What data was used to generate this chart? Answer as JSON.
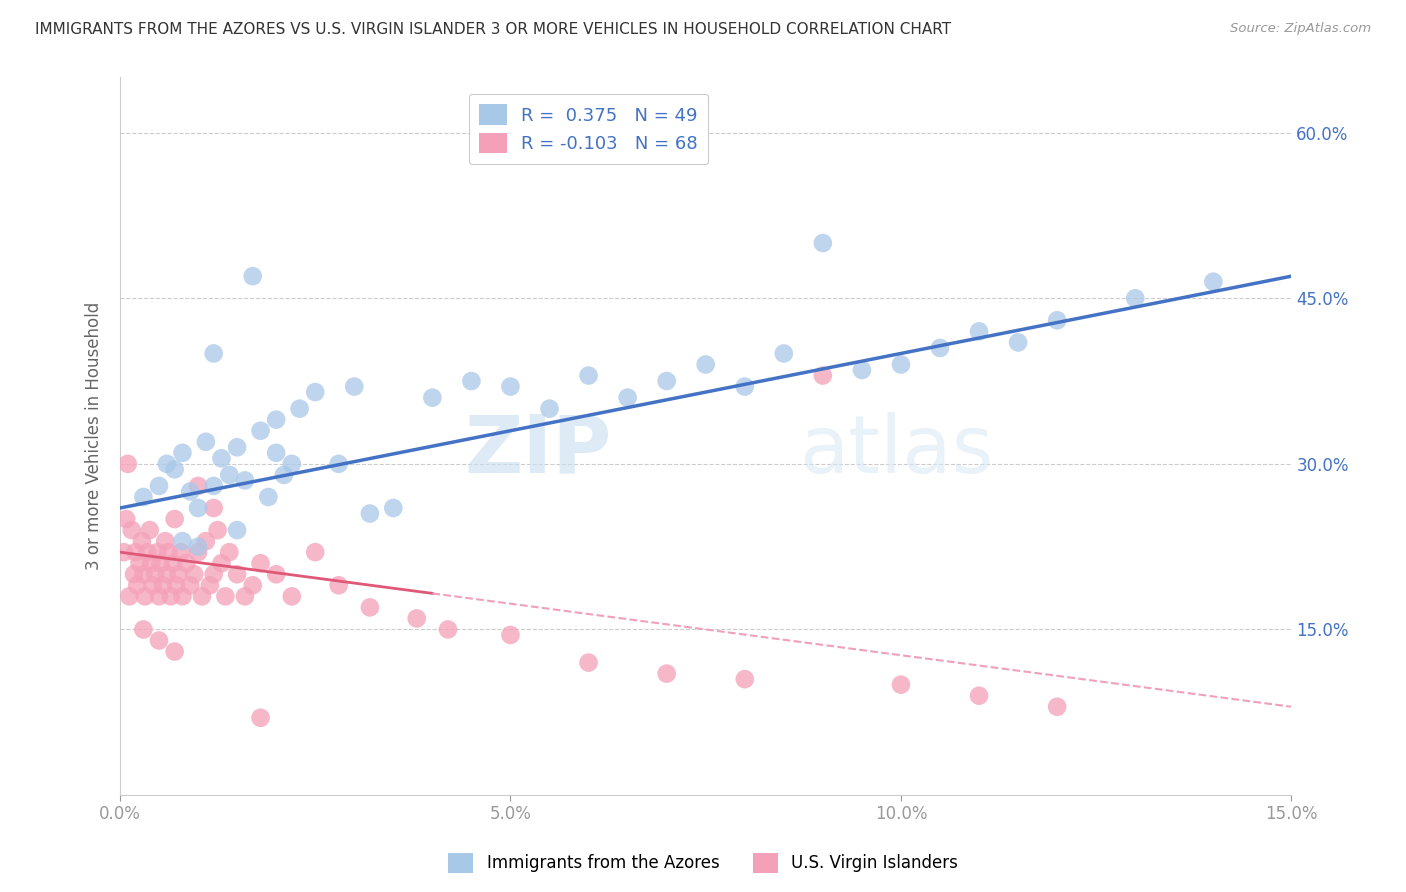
{
  "title": "IMMIGRANTS FROM THE AZORES VS U.S. VIRGIN ISLANDER 3 OR MORE VEHICLES IN HOUSEHOLD CORRELATION CHART",
  "source": "Source: ZipAtlas.com",
  "ylabel": "3 or more Vehicles in Household",
  "xlim": [
    0.0,
    15.0
  ],
  "ylim": [
    0.0,
    65.0
  ],
  "xticklabels": [
    "0.0%",
    "5.0%",
    "10.0%",
    "15.0%"
  ],
  "xticks": [
    0.0,
    5.0,
    10.0,
    15.0
  ],
  "yticklabels_right": [
    "15.0%",
    "30.0%",
    "45.0%",
    "60.0%"
  ],
  "yticks_right": [
    15.0,
    30.0,
    45.0,
    60.0
  ],
  "blue_color": "#a8c8e8",
  "pink_color": "#f4a0b8",
  "blue_line_color": "#4472c4",
  "pink_line_color": "#e05878",
  "pink_line_dash_color": "#f0a0b8",
  "R_blue": 0.375,
  "N_blue": 49,
  "R_pink": -0.103,
  "N_pink": 68,
  "legend_label_blue": "Immigrants from the Azores",
  "legend_label_pink": "U.S. Virgin Islanders",
  "watermark": "ZIPatlas",
  "blue_scatter_x": [
    0.3,
    0.5,
    0.6,
    0.7,
    0.8,
    0.9,
    1.0,
    1.1,
    1.2,
    1.3,
    1.4,
    1.5,
    1.6,
    1.7,
    1.8,
    1.9,
    2.0,
    2.1,
    2.2,
    2.3,
    2.5,
    2.8,
    3.0,
    3.2,
    3.5,
    1.5,
    1.0,
    0.8,
    1.2,
    2.0,
    5.0,
    5.5,
    6.0,
    6.5,
    7.0,
    7.5,
    8.0,
    8.5,
    9.0,
    9.5,
    10.0,
    10.5,
    11.0,
    11.5,
    12.0,
    13.0,
    14.0,
    4.0,
    4.5
  ],
  "blue_scatter_y": [
    27.0,
    28.0,
    30.0,
    29.5,
    31.0,
    27.5,
    26.0,
    32.0,
    28.0,
    30.5,
    29.0,
    31.5,
    28.5,
    47.0,
    33.0,
    27.0,
    34.0,
    29.0,
    30.0,
    35.0,
    36.5,
    30.0,
    37.0,
    25.5,
    26.0,
    24.0,
    22.5,
    23.0,
    40.0,
    31.0,
    37.0,
    35.0,
    38.0,
    36.0,
    37.5,
    39.0,
    37.0,
    40.0,
    50.0,
    38.5,
    39.0,
    40.5,
    42.0,
    41.0,
    43.0,
    45.0,
    46.5,
    36.0,
    37.5
  ],
  "pink_scatter_x": [
    0.05,
    0.08,
    0.1,
    0.12,
    0.15,
    0.18,
    0.2,
    0.22,
    0.25,
    0.28,
    0.3,
    0.32,
    0.35,
    0.38,
    0.4,
    0.42,
    0.45,
    0.48,
    0.5,
    0.52,
    0.55,
    0.58,
    0.6,
    0.62,
    0.65,
    0.68,
    0.7,
    0.72,
    0.75,
    0.78,
    0.8,
    0.85,
    0.9,
    0.95,
    1.0,
    1.05,
    1.1,
    1.15,
    1.2,
    1.25,
    1.3,
    1.35,
    1.4,
    1.5,
    1.6,
    1.7,
    1.8,
    2.0,
    2.2,
    2.5,
    2.8,
    3.2,
    3.8,
    4.2,
    5.0,
    6.0,
    7.0,
    8.0,
    9.0,
    10.0,
    11.0,
    12.0,
    0.3,
    0.5,
    0.7,
    1.0,
    1.2,
    1.8
  ],
  "pink_scatter_y": [
    22.0,
    25.0,
    30.0,
    18.0,
    24.0,
    20.0,
    22.0,
    19.0,
    21.0,
    23.0,
    20.0,
    18.0,
    22.0,
    24.0,
    21.0,
    19.0,
    20.0,
    22.0,
    18.0,
    21.0,
    19.0,
    23.0,
    20.0,
    22.0,
    18.0,
    21.0,
    25.0,
    19.0,
    20.0,
    22.0,
    18.0,
    21.0,
    19.0,
    20.0,
    22.0,
    18.0,
    23.0,
    19.0,
    20.0,
    24.0,
    21.0,
    18.0,
    22.0,
    20.0,
    18.0,
    19.0,
    21.0,
    20.0,
    18.0,
    22.0,
    19.0,
    17.0,
    16.0,
    15.0,
    14.5,
    12.0,
    11.0,
    10.5,
    38.0,
    10.0,
    9.0,
    8.0,
    15.0,
    14.0,
    13.0,
    28.0,
    26.0,
    7.0
  ]
}
